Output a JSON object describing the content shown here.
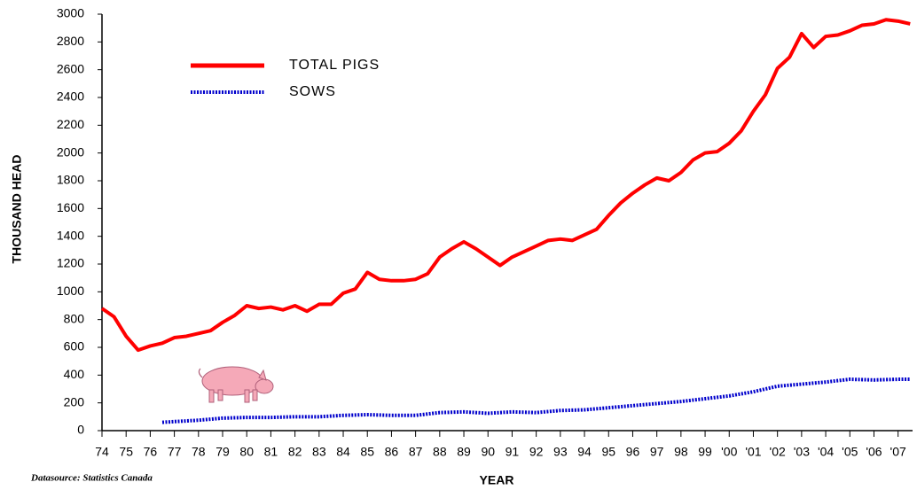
{
  "chart_data": {
    "type": "line",
    "x_label": "YEAR",
    "y_label": "THOUSAND HEAD",
    "source": "Datasource: Statistics Canada",
    "xlim": [
      1974,
      2007.6
    ],
    "ylim": [
      0,
      3000
    ],
    "yticks": [
      0,
      200,
      400,
      600,
      800,
      1000,
      1200,
      1400,
      1600,
      1800,
      2000,
      2200,
      2400,
      2600,
      2800,
      3000
    ],
    "xticks": [
      {
        "value": 1974,
        "label": "74"
      },
      {
        "value": 1975,
        "label": "75"
      },
      {
        "value": 1976,
        "label": "76"
      },
      {
        "value": 1977,
        "label": "77"
      },
      {
        "value": 1978,
        "label": "78"
      },
      {
        "value": 1979,
        "label": "79"
      },
      {
        "value": 1980,
        "label": "80"
      },
      {
        "value": 1981,
        "label": "81"
      },
      {
        "value": 1982,
        "label": "82"
      },
      {
        "value": 1983,
        "label": "83"
      },
      {
        "value": 1984,
        "label": "84"
      },
      {
        "value": 1985,
        "label": "85"
      },
      {
        "value": 1986,
        "label": "86"
      },
      {
        "value": 1987,
        "label": "87"
      },
      {
        "value": 1988,
        "label": "88"
      },
      {
        "value": 1989,
        "label": "89"
      },
      {
        "value": 1990,
        "label": "90"
      },
      {
        "value": 1991,
        "label": "91"
      },
      {
        "value": 1992,
        "label": "92"
      },
      {
        "value": 1993,
        "label": "93"
      },
      {
        "value": 1994,
        "label": "94"
      },
      {
        "value": 1995,
        "label": "95"
      },
      {
        "value": 1996,
        "label": "96"
      },
      {
        "value": 1997,
        "label": "97"
      },
      {
        "value": 1998,
        "label": "98"
      },
      {
        "value": 1999,
        "label": "99"
      },
      {
        "value": 2000,
        "label": "'00"
      },
      {
        "value": 2001,
        "label": "'01"
      },
      {
        "value": 2002,
        "label": "'02"
      },
      {
        "value": 2003,
        "label": "'03"
      },
      {
        "value": 2004,
        "label": "'04"
      },
      {
        "value": 2005,
        "label": "'05"
      },
      {
        "value": 2006,
        "label": "'06"
      },
      {
        "value": 2007,
        "label": "'07"
      }
    ],
    "series": [
      {
        "name": "TOTAL PIGS",
        "color": "#ff0000",
        "style": "solid",
        "x": [
          1974,
          1974.5,
          1975,
          1975.5,
          1976,
          1976.5,
          1977,
          1977.5,
          1978,
          1978.5,
          1979,
          1979.5,
          1980,
          1980.5,
          1981,
          1981.5,
          1982,
          1982.5,
          1983,
          1983.5,
          1984,
          1984.5,
          1985,
          1985.5,
          1986,
          1986.5,
          1987,
          1987.5,
          1988,
          1988.5,
          1989,
          1989.5,
          1990,
          1990.5,
          1991,
          1991.5,
          1992,
          1992.5,
          1993,
          1993.5,
          1994,
          1994.5,
          1995,
          1995.5,
          1996,
          1996.5,
          1997,
          1997.5,
          1998,
          1998.5,
          1999,
          1999.5,
          2000,
          2000.5,
          2001,
          2001.5,
          2002,
          2002.5,
          2003,
          2003.5,
          2004,
          2004.5,
          2005,
          2005.5,
          2006,
          2006.5,
          2007,
          2007.5
        ],
        "values": [
          880,
          820,
          680,
          580,
          610,
          630,
          670,
          680,
          700,
          720,
          780,
          830,
          900,
          880,
          890,
          870,
          900,
          860,
          910,
          910,
          990,
          1020,
          1140,
          1090,
          1080,
          1080,
          1090,
          1130,
          1250,
          1310,
          1360,
          1310,
          1250,
          1190,
          1250,
          1290,
          1330,
          1370,
          1380,
          1370,
          1410,
          1450,
          1550,
          1640,
          1710,
          1770,
          1820,
          1800,
          1860,
          1950,
          2000,
          2010,
          2070,
          2160,
          2300,
          2420,
          2610,
          2690,
          2860,
          2760,
          2840,
          2850,
          2880,
          2920,
          2930,
          2960,
          2950,
          2930
        ]
      },
      {
        "name": "SOWS",
        "color": "#0000cc",
        "style": "dotted",
        "x": [
          1976.5,
          1977,
          1978,
          1979,
          1980,
          1981,
          1982,
          1983,
          1984,
          1985,
          1986,
          1987,
          1988,
          1989,
          1990,
          1991,
          1992,
          1993,
          1994,
          1995,
          1996,
          1997,
          1998,
          1999,
          2000,
          2001,
          2002,
          2003,
          2004,
          2005,
          2006,
          2007,
          2007.5
        ],
        "values": [
          60,
          65,
          75,
          90,
          95,
          95,
          100,
          100,
          110,
          115,
          110,
          110,
          130,
          135,
          125,
          135,
          130,
          145,
          150,
          165,
          180,
          195,
          210,
          230,
          250,
          280,
          320,
          335,
          350,
          370,
          365,
          370,
          370
        ]
      }
    ]
  }
}
